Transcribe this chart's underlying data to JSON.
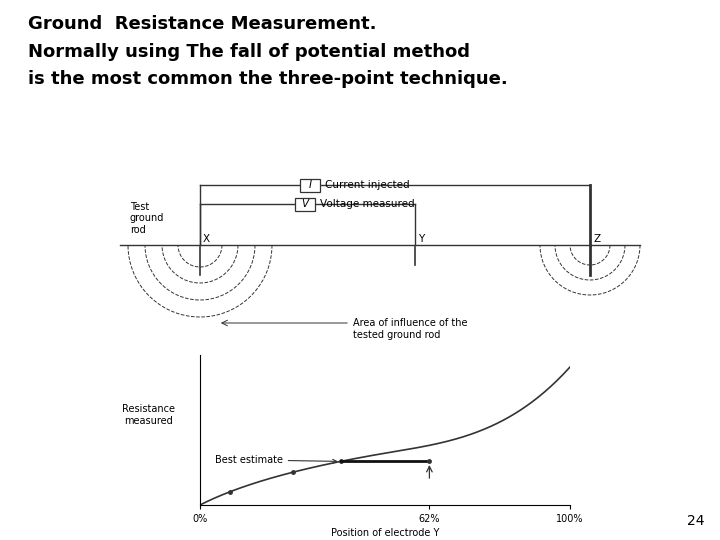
{
  "title_line1": "Ground  Resistance Measurement.",
  "title_line2": "Normally using The fall of potential method",
  "title_line3": "is the most common the three-point technique.",
  "page_number": "24",
  "bg_color": "#ffffff",
  "line_color": "#333333",
  "text_color": "#000000",
  "X_label": "X",
  "Y_label": "Y",
  "Z_label": "Z",
  "I_label": "I",
  "V_label": "V",
  "current_label": "Current injected",
  "voltage_label": "Voltage measured",
  "test_ground_label": "Test\nground\nrod",
  "area_label": "Area of influence of the\ntested ground rod",
  "best_estimate_label": "Best estimate",
  "resistance_label": "Resistance\nmeasured",
  "position_label": "Position of electrode Y",
  "x_ticks": [
    "0%",
    "62%",
    "100%"
  ],
  "title_fontsize": 13,
  "diagram_fontsize": 7.5
}
